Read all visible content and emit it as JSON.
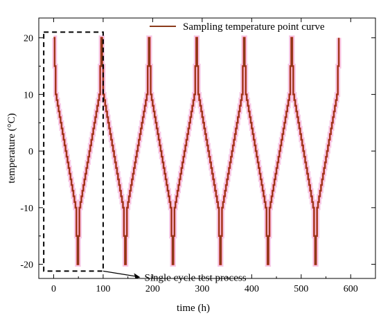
{
  "chart_data": {
    "type": "line",
    "xlabel": "time (h)",
    "ylabel": "temperature (°C)",
    "xlim": [
      -30,
      650
    ],
    "ylim": [
      -22.5,
      23.5
    ],
    "x_ticks": [
      0,
      100,
      200,
      300,
      400,
      500,
      600
    ],
    "y_ticks": [
      -20,
      -10,
      0,
      10,
      20
    ],
    "grid": false,
    "legend_position": "top-right",
    "series": [
      {
        "name": "Sampling temperature point curve",
        "color": "#8B3A1A",
        "x": [
          0,
          2,
          2,
          4,
          4,
          6,
          6,
          8,
          8,
          10,
          10,
          12,
          12,
          14,
          14,
          16,
          16,
          18,
          18,
          20,
          20,
          22,
          22,
          24,
          24,
          26,
          26,
          28,
          28,
          30,
          30,
          32,
          32,
          34,
          34,
          36,
          36,
          38,
          38,
          40,
          40,
          42,
          42,
          44,
          44,
          46,
          46,
          48,
          48,
          50,
          50,
          52,
          52,
          54,
          54,
          56,
          56,
          58,
          58,
          60,
          60,
          62,
          62,
          64,
          64,
          66,
          66,
          68,
          68,
          70,
          70,
          72,
          72,
          74,
          74,
          76,
          76,
          78,
          78,
          80,
          80,
          82,
          82,
          84,
          84,
          86,
          86,
          88,
          88,
          90,
          90,
          92,
          92,
          94,
          94,
          96,
          96,
          98,
          98,
          100,
          100,
          102,
          102,
          104,
          104,
          106,
          106,
          108,
          108,
          110,
          110,
          112,
          112,
          114,
          114,
          116,
          116,
          118,
          118,
          120,
          120,
          122,
          122,
          124,
          124,
          126,
          126,
          128,
          128,
          130,
          130,
          132,
          132,
          134,
          134,
          136,
          136,
          138,
          138,
          140,
          140,
          142,
          142,
          144,
          144,
          146,
          146,
          148,
          148,
          150,
          150,
          152,
          152,
          154,
          154,
          156,
          156,
          158,
          158,
          160,
          160,
          162,
          162,
          164,
          164,
          166,
          166,
          168,
          168,
          170,
          170,
          172,
          172,
          174,
          174,
          176,
          176,
          178,
          178,
          180,
          180,
          182,
          182,
          184,
          184,
          186,
          186,
          188,
          188,
          190,
          190,
          192,
          192,
          194,
          194,
          196,
          196,
          198,
          198,
          200,
          200,
          202,
          202,
          204,
          204,
          206,
          206,
          208,
          208,
          210,
          210,
          212,
          212,
          214,
          214,
          216,
          216,
          218,
          218,
          220,
          220,
          222,
          222,
          224,
          224,
          226,
          226,
          228,
          228,
          230,
          230,
          232,
          232,
          234,
          234,
          236,
          236,
          238,
          238,
          240,
          240,
          242,
          242,
          244,
          244,
          246,
          246,
          248,
          248,
          250,
          250,
          252,
          252,
          254,
          254,
          256,
          256,
          258,
          258,
          260,
          260,
          262,
          262,
          264,
          264,
          266,
          266,
          268,
          268,
          270,
          270,
          272,
          272,
          274,
          274,
          276,
          276,
          278,
          278,
          280,
          280,
          282,
          282,
          284,
          284,
          286,
          286,
          288,
          288,
          290,
          290,
          292,
          292,
          294,
          294,
          296,
          296,
          298,
          298,
          300,
          300,
          302,
          302,
          304,
          304,
          306,
          306,
          308,
          308,
          310,
          310,
          312,
          312,
          314,
          314,
          316,
          316,
          318,
          318,
          320,
          320,
          322,
          322,
          324,
          324,
          326,
          326,
          328,
          328,
          330,
          330,
          332,
          332,
          334,
          334,
          336,
          336,
          338,
          338,
          340,
          340,
          342,
          342,
          344,
          344,
          346,
          346,
          348,
          348,
          350,
          350,
          352,
          352,
          354,
          354,
          356,
          356,
          358,
          358,
          360,
          360,
          362,
          362,
          364,
          364,
          366,
          366,
          368,
          368,
          370,
          370,
          372,
          372,
          374,
          374,
          376,
          376,
          378,
          378,
          380,
          380,
          382,
          382,
          384,
          384,
          386,
          386,
          388,
          388,
          390,
          390,
          392,
          392,
          394,
          394,
          396,
          396,
          398,
          398,
          400,
          400,
          402,
          402,
          404,
          404,
          406,
          406,
          408,
          408,
          410,
          410,
          412,
          412,
          414,
          414,
          416,
          416,
          418,
          418,
          420,
          420,
          422,
          422,
          424,
          424,
          426,
          426,
          428,
          428,
          430,
          430,
          432,
          432,
          434,
          434,
          436,
          436,
          438,
          438,
          440,
          440,
          442,
          442,
          444,
          444,
          446,
          446,
          448,
          448,
          450,
          450,
          452,
          452,
          454,
          454,
          456,
          456,
          458,
          458,
          460,
          460,
          462,
          462,
          464,
          464,
          466,
          466,
          468,
          468,
          470,
          470,
          472,
          472,
          474,
          474,
          476,
          476,
          478,
          478,
          480,
          480,
          482,
          482,
          484,
          484,
          486,
          486,
          488,
          488,
          490,
          490,
          492,
          492,
          494,
          494,
          496,
          496,
          498,
          498,
          500,
          500,
          502,
          502,
          504,
          504,
          506,
          506,
          508,
          508,
          510,
          510,
          512,
          512,
          514,
          514,
          516,
          516,
          518,
          518,
          520,
          520,
          522,
          522,
          524,
          524,
          526,
          526,
          528,
          528,
          530,
          530,
          532,
          532,
          534,
          534,
          536,
          536,
          538,
          538,
          540,
          540,
          542,
          542,
          544,
          544,
          546,
          546,
          548,
          548,
          550,
          550,
          552,
          552,
          554,
          554,
          556,
          556,
          558,
          558,
          560,
          560,
          562,
          562,
          564,
          564,
          566,
          566,
          568,
          568,
          570,
          570,
          572,
          572,
          574,
          574,
          576,
          576
        ],
        "y": [
          20,
          20,
          15,
          15,
          10,
          10,
          9,
          9,
          8,
          8,
          7,
          7,
          6,
          6,
          5,
          5,
          4,
          4,
          3,
          3,
          2,
          2,
          1,
          1,
          0,
          0,
          -1,
          -1,
          -2,
          -2,
          -3,
          -3,
          -4,
          -4,
          -5,
          -5,
          -6,
          -6,
          -7,
          -7,
          -8,
          -8,
          -9,
          -9,
          -10,
          -10,
          -15,
          -15,
          -20,
          -20,
          -15,
          -15,
          -10,
          -10,
          -9,
          -9,
          -8,
          -8,
          -7,
          -7,
          -6,
          -6,
          -5,
          -5,
          -4,
          -4,
          -3,
          -3,
          -2,
          -2,
          -1,
          -1,
          0,
          0,
          1,
          1,
          2,
          2,
          3,
          3,
          4,
          4,
          5,
          5,
          6,
          6,
          7,
          7,
          8,
          8,
          9,
          9,
          10,
          10,
          15,
          15,
          20,
          20,
          15,
          15,
          10,
          10,
          9,
          9,
          8,
          8,
          7,
          7,
          6,
          6,
          5,
          5,
          4,
          4,
          3,
          3,
          2,
          2,
          1,
          1,
          0,
          0,
          -1,
          -1,
          -2,
          -2,
          -3,
          -3,
          -4,
          -4,
          -5,
          -5,
          -6,
          -6,
          -7,
          -7,
          -8,
          -8,
          -9,
          -9,
          -10,
          -10,
          -15,
          -15,
          -20,
          -20,
          -15,
          -15,
          -10,
          -10,
          -9,
          -9,
          -8,
          -8,
          -7,
          -7,
          -6,
          -6,
          -5,
          -5,
          -4,
          -4,
          -3,
          -3,
          -2,
          -2,
          -1,
          -1,
          0,
          0,
          1,
          1,
          2,
          2,
          3,
          3,
          4,
          4,
          5,
          5,
          6,
          6,
          7,
          7,
          8,
          8,
          9,
          9,
          10,
          10,
          15,
          15,
          20,
          20,
          15,
          15,
          10,
          10,
          9,
          9,
          8,
          8,
          7,
          7,
          6,
          6,
          5,
          5,
          4,
          4,
          3,
          3,
          2,
          2,
          1,
          1,
          0,
          0,
          -1,
          -1,
          -2,
          -2,
          -3,
          -3,
          -4,
          -4,
          -5,
          -5,
          -6,
          -6,
          -7,
          -7,
          -8,
          -8,
          -9,
          -9,
          -10,
          -10,
          -15,
          -15,
          -20,
          -20,
          -15,
          -15,
          -10,
          -10,
          -9,
          -9,
          -8,
          -8,
          -7,
          -7,
          -6,
          -6,
          -5,
          -5,
          -4,
          -4,
          -3,
          -3,
          -2,
          -2,
          -1,
          -1,
          0,
          0,
          1,
          1,
          2,
          2,
          3,
          3,
          4,
          4,
          5,
          5,
          6,
          6,
          7,
          7,
          8,
          8,
          9,
          9,
          10,
          10,
          15,
          15,
          20,
          20,
          15,
          15,
          10,
          10,
          9,
          9,
          8,
          8,
          7,
          7,
          6,
          6,
          5,
          5,
          4,
          4,
          3,
          3,
          2,
          2,
          1,
          1,
          0,
          0,
          -1,
          -1,
          -2,
          -2,
          -3,
          -3,
          -4,
          -4,
          -5,
          -5,
          -6,
          -6,
          -7,
          -7,
          -8,
          -8,
          -9,
          -9,
          -10,
          -10,
          -15,
          -15,
          -20,
          -20,
          -15,
          -15,
          -10,
          -10,
          -9,
          -9,
          -8,
          -8,
          -7,
          -7,
          -6,
          -6,
          -5,
          -5,
          -4,
          -4,
          -3,
          -3,
          -2,
          -2,
          -1,
          -1,
          0,
          0,
          1,
          1,
          2,
          2,
          3,
          3,
          4,
          4,
          5,
          5,
          6,
          6,
          7,
          7,
          8,
          8,
          9,
          9,
          10,
          10,
          15,
          15,
          20,
          20,
          15,
          15,
          10,
          10,
          9,
          9,
          8,
          8,
          7,
          7,
          6,
          6,
          5,
          5,
          4,
          4,
          3,
          3,
          2,
          2,
          1,
          1,
          0,
          0,
          -1,
          -1,
          -2,
          -2,
          -3,
          -3,
          -4,
          -4,
          -5,
          -5,
          -6,
          -6,
          -7,
          -7,
          -8,
          -8,
          -9,
          -9,
          -10,
          -10,
          -15,
          -15,
          -20,
          -20,
          -15,
          -15,
          -10,
          -10,
          -9,
          -9,
          -8,
          -8,
          -7,
          -7,
          -6,
          -6,
          -5,
          -5,
          -4,
          -4,
          -3,
          -3,
          -2,
          -2,
          -1,
          -1,
          0,
          0,
          1,
          1,
          2,
          2,
          3,
          3,
          4,
          4,
          5,
          5,
          6,
          6,
          7,
          7,
          8,
          8,
          9,
          9,
          10,
          10,
          15,
          15,
          20,
          20,
          15,
          15,
          10,
          10,
          9,
          9,
          8,
          8,
          7,
          7,
          6,
          6,
          5,
          5,
          4,
          4,
          3,
          3,
          2,
          2,
          1,
          1,
          0,
          0,
          -1,
          -1,
          -2,
          -2,
          -3,
          -3,
          -4,
          -4,
          -5,
          -5,
          -6,
          -6,
          -7,
          -7,
          -8,
          -8,
          -9,
          -9,
          -10,
          -10,
          -15,
          -15,
          -20,
          -20,
          -15,
          -15,
          -10,
          -10,
          -9,
          -9,
          -8,
          -8,
          -7,
          -7,
          -6,
          -6,
          -5,
          -5,
          -4,
          -4,
          -3,
          -3,
          -2,
          -2,
          -1,
          -1,
          0,
          0,
          1,
          1,
          2,
          2,
          3,
          3,
          4,
          4,
          5,
          5,
          6,
          6,
          7,
          7,
          8,
          8,
          9,
          9,
          10,
          10,
          15,
          15,
          20
        ]
      }
    ],
    "annotations": [
      {
        "text": "Single cycle test process",
        "box_x": [
          -20,
          100
        ],
        "box_y": [
          -21.2,
          21
        ],
        "arrow_to": [
          175,
          -22.3
        ]
      }
    ]
  }
}
